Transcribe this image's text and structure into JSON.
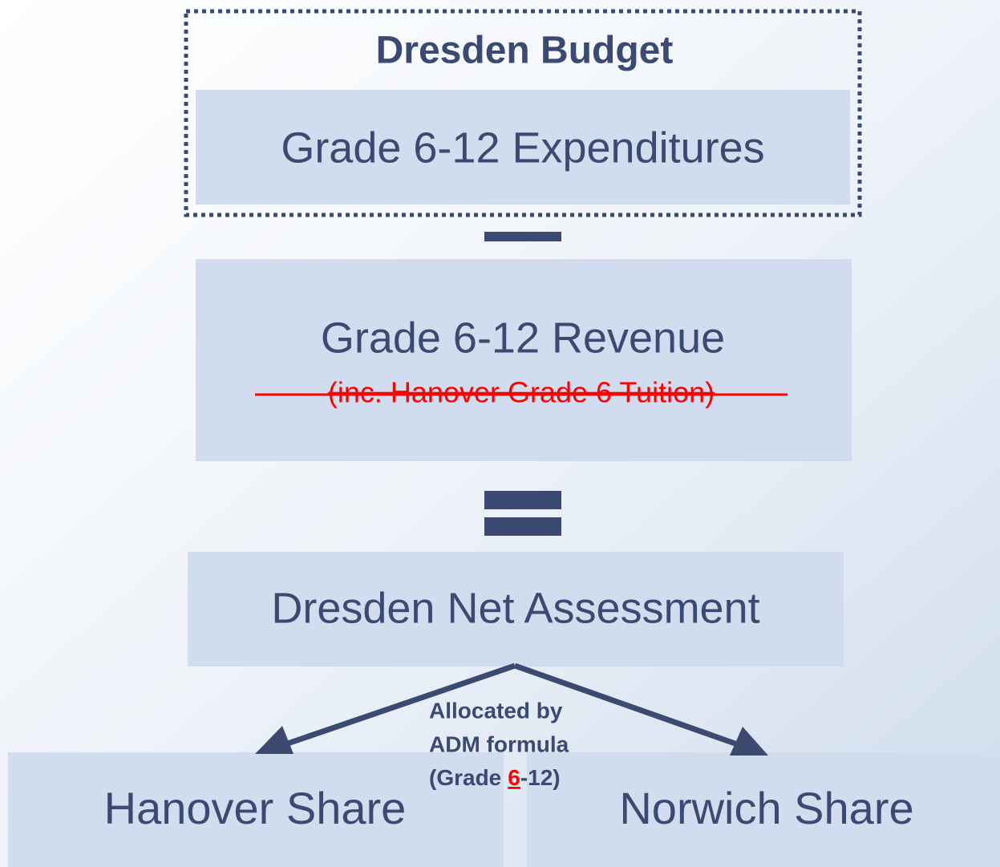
{
  "budget": {
    "title": "Dresden Budget",
    "expenditures": "Grade 6-12 Expenditures"
  },
  "revenue": {
    "label": "Grade 6-12 Revenue",
    "struck_note": "(inc. Hanover Grade 6 Tuition)"
  },
  "net": {
    "label": "Dresden Net Assessment"
  },
  "allocation": {
    "line1": "Allocated by",
    "line2": "ADM formula",
    "line3_start": "(Grade",
    "line3_highlight": "6",
    "line3_end": "-12)"
  },
  "shares": [
    "Hanover Share",
    "Norwich Share"
  ]
}
